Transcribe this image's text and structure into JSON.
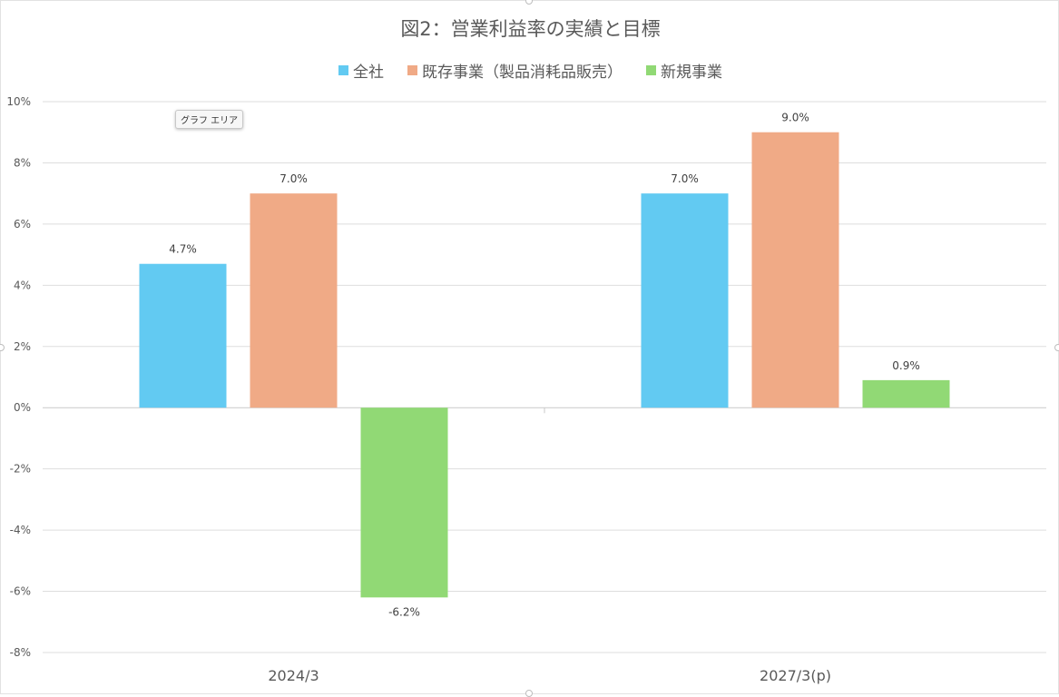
{
  "chart_data": {
    "type": "bar",
    "title": "図2：営業利益率の実績と目標",
    "categories": [
      "2024/3",
      "2027/3(p)"
    ],
    "series": [
      {
        "name": "全社",
        "color": "#62CAF2",
        "values": [
          4.7,
          7.0
        ],
        "labels": [
          "4.7%",
          "7.0%"
        ]
      },
      {
        "name": "既存事業（製品消耗品販売）",
        "color": "#F0AA86",
        "values": [
          7.0,
          9.0
        ],
        "labels": [
          "7.0%",
          "9.0%"
        ]
      },
      {
        "name": "新規事業",
        "color": "#91D975",
        "values": [
          -6.2,
          0.9
        ],
        "labels": [
          "-6.2%",
          "0.9%"
        ]
      }
    ],
    "ylim": [
      -8,
      10
    ],
    "yticks": [
      10,
      8,
      6,
      4,
      2,
      0,
      -2,
      -4,
      -6,
      -8
    ],
    "ytick_labels": [
      "10%",
      "8%",
      "6%",
      "4%",
      "2%",
      "0%",
      "-2%",
      "-4%",
      "-6%",
      "-8%"
    ],
    "grid": true,
    "legend_position": "top",
    "xlabel": "",
    "ylabel": ""
  },
  "tooltip": {
    "text": "グラフ エリア"
  }
}
